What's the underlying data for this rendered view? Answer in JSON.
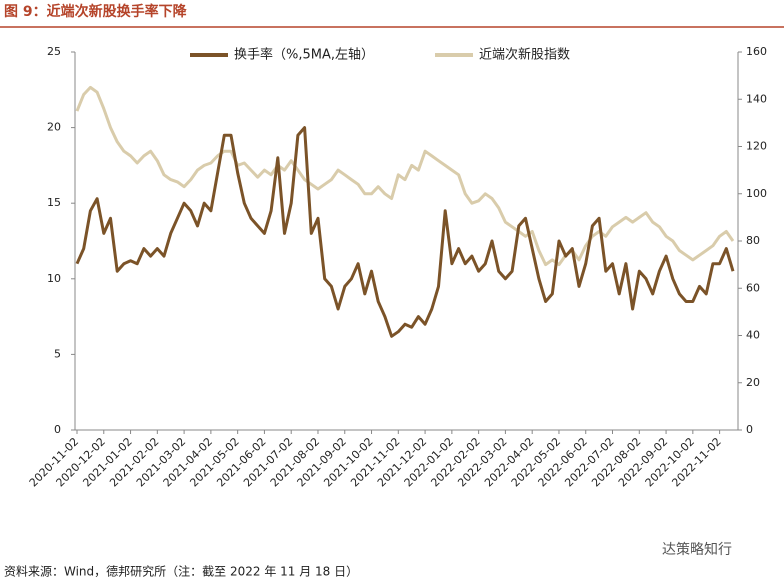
{
  "title": "图 9：近端次新股换手率下降",
  "source": "资料来源：Wind，德邦研究所（注：截至 2022 年 11 月 18 日）",
  "watermark": "达策略知行",
  "chart_data": {
    "type": "line",
    "categories": [
      "2020-11-02",
      null,
      null,
      null,
      "2020-12-02",
      null,
      null,
      null,
      "2021-01-02",
      null,
      null,
      null,
      "2021-02-02",
      null,
      null,
      null,
      "2021-03-02",
      null,
      null,
      null,
      "2021-04-02",
      null,
      null,
      null,
      "2021-05-02",
      null,
      null,
      null,
      "2021-06-02",
      null,
      null,
      null,
      "2021-07-02",
      null,
      null,
      null,
      "2021-08-02",
      null,
      null,
      null,
      "2021-09-02",
      null,
      null,
      null,
      "2021-10-02",
      null,
      null,
      null,
      "2021-11-02",
      null,
      null,
      null,
      "2021-12-02",
      null,
      null,
      null,
      "2022-01-02",
      null,
      null,
      null,
      "2022-02-02",
      null,
      null,
      null,
      "2022-03-02",
      null,
      null,
      null,
      "2022-04-02",
      null,
      null,
      null,
      "2022-05-02",
      null,
      null,
      null,
      "2022-06-02",
      null,
      null,
      null,
      "2022-07-02",
      null,
      null,
      null,
      "2022-08-02",
      null,
      null,
      null,
      "2022-09-02",
      null,
      null,
      null,
      "2022-10-02",
      null,
      null,
      null,
      "2022-11-02",
      null,
      null
    ],
    "series": [
      {
        "name": "换手率（%,5MA,左轴）",
        "color": "#7b5328",
        "values": [
          11,
          12,
          14.5,
          15.3,
          13,
          14,
          10.5,
          11,
          11.2,
          11,
          12,
          11.5,
          12,
          11.5,
          13,
          14,
          15,
          14.5,
          13.5,
          15,
          14.5,
          17,
          19.5,
          19.5,
          17,
          15,
          14,
          13.5,
          13,
          14.5,
          18,
          13,
          15,
          19.5,
          20,
          13,
          14,
          10,
          9.5,
          8,
          9.5,
          10,
          11,
          9,
          10.5,
          8.5,
          7.5,
          6.2,
          6.5,
          7,
          6.8,
          7.5,
          7,
          8,
          9.5,
          14.5,
          11,
          12,
          11,
          11.5,
          10.5,
          11,
          12.5,
          10.5,
          10,
          10.5,
          13.5,
          14,
          12,
          10,
          8.5,
          9,
          12.5,
          11.5,
          12,
          9.5,
          11,
          13.5,
          14,
          10.5,
          11,
          9,
          11,
          8,
          10.5,
          10,
          9,
          10.5,
          11.5,
          10,
          9,
          8.5,
          8.5,
          9.5,
          9,
          11,
          11,
          12,
          10.5
        ]
      },
      {
        "name": "近端次新股指数",
        "color": "#d9ccab",
        "axis": "y2",
        "values": [
          135,
          142,
          145,
          143,
          136,
          128,
          122,
          118,
          116,
          113,
          116,
          118,
          114,
          108,
          106,
          105,
          103,
          106,
          110,
          112,
          113,
          116,
          118,
          118,
          112,
          113,
          110,
          107,
          110,
          108,
          112,
          110,
          114,
          110,
          106,
          104,
          102,
          104,
          106,
          110,
          108,
          106,
          104,
          100,
          100,
          103,
          100,
          98,
          108,
          106,
          112,
          110,
          118,
          116,
          114,
          112,
          110,
          108,
          100,
          96,
          97,
          100,
          98,
          94,
          88,
          86,
          84,
          82,
          84,
          76,
          70,
          72,
          70,
          74,
          76,
          72,
          78,
          82,
          84,
          82,
          86,
          88,
          90,
          88,
          90,
          92,
          88,
          86,
          82,
          80,
          76,
          74,
          72,
          74,
          76,
          78,
          82,
          84,
          80
        ]
      }
    ],
    "ylim": [
      0,
      25
    ],
    "yticks": [
      0,
      5,
      10,
      15,
      20,
      25
    ],
    "y2lim": [
      0,
      160
    ],
    "y2ticks": [
      0,
      20,
      40,
      60,
      80,
      100,
      120,
      140,
      160
    ],
    "legend": "top"
  }
}
